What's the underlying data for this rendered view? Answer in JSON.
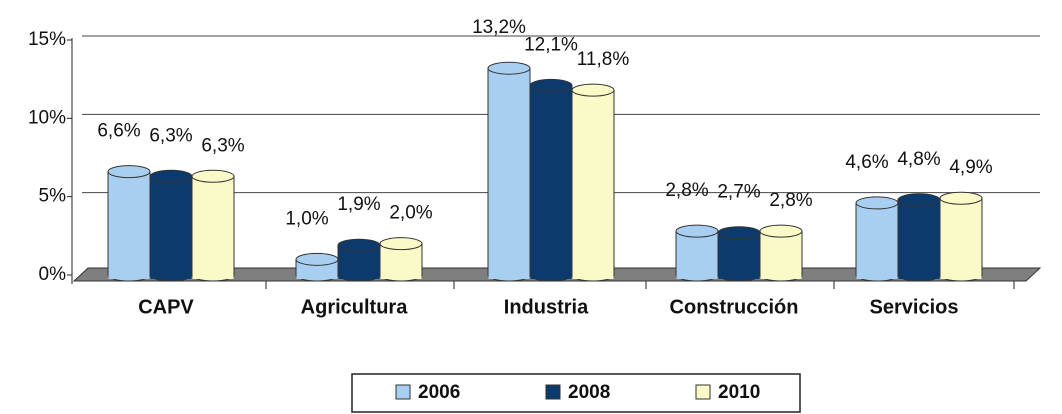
{
  "chart_data": {
    "type": "bar3d",
    "categories": [
      "CAPV",
      "Agricultura",
      "Industria",
      "Construcción",
      "Servicios"
    ],
    "series": [
      {
        "name": "2006",
        "color": "#a8cff2",
        "values": [
          6.6,
          1.0,
          13.2,
          2.8,
          4.6
        ],
        "value_labels": [
          "6,6%",
          "1,0%",
          "13,2%",
          "2,8%",
          "4,6%"
        ]
      },
      {
        "name": "2008",
        "color": "#0d3a6c",
        "values": [
          6.3,
          1.9,
          12.1,
          2.7,
          4.8
        ],
        "value_labels": [
          "6,3%",
          "1,9%",
          "12,1%",
          "2,7%",
          "4,8%"
        ]
      },
      {
        "name": "2010",
        "color": "#fafac8",
        "values": [
          6.3,
          2.0,
          11.8,
          2.8,
          4.9
        ],
        "value_labels": [
          "6,3%",
          "2,0%",
          "11,8%",
          "2,8%",
          "4,9%"
        ]
      }
    ],
    "ylim": [
      0,
      15
    ],
    "yticks": [
      {
        "value": 0,
        "label": "0%"
      },
      {
        "value": 5,
        "label": "5%"
      },
      {
        "value": 10,
        "label": "10%"
      },
      {
        "value": 15,
        "label": "15%"
      }
    ],
    "grid": true
  }
}
